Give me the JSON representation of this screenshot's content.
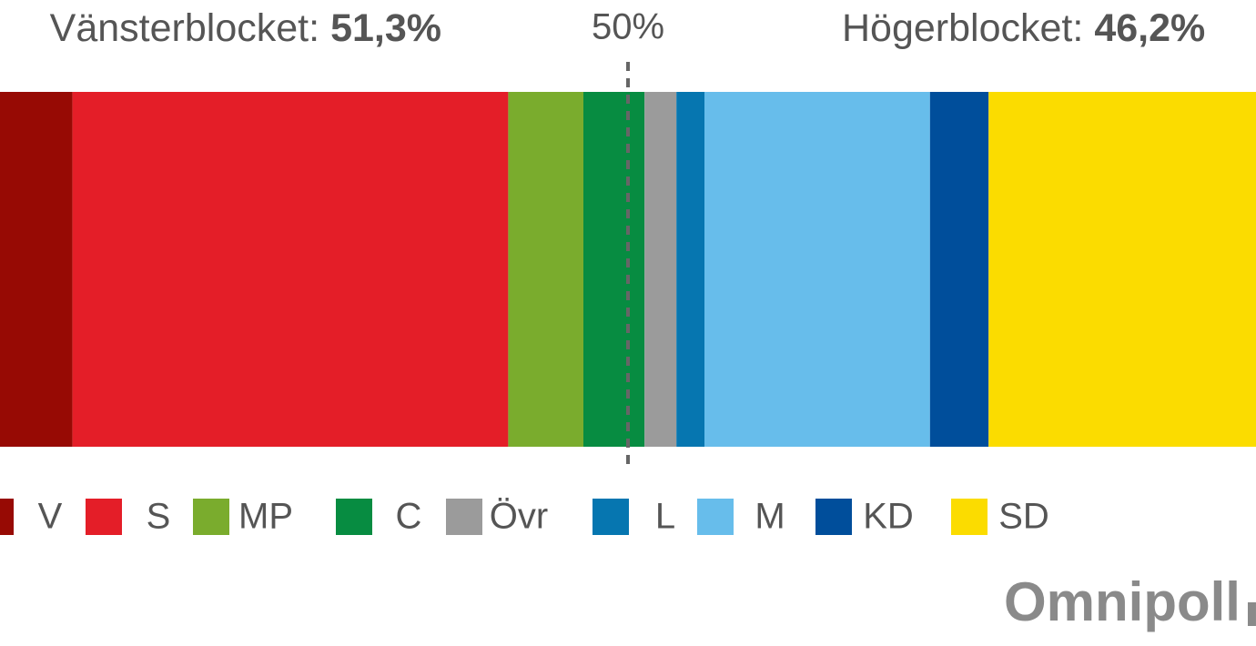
{
  "chart_data": {
    "type": "stacked-bar",
    "series": [
      {
        "name": "V",
        "color": "#970a04",
        "values": [
          6.4
        ]
      },
      {
        "name": "S",
        "color": "#e41e28",
        "values": [
          34.2
        ]
      },
      {
        "name": "MP",
        "color": "#7aac2d",
        "values": [
          5.9
        ]
      },
      {
        "name": "C",
        "color": "#078c41",
        "values": [
          4.8
        ]
      },
      {
        "name": "Övr",
        "color": "#9b9b9b",
        "values": [
          2.5
        ]
      },
      {
        "name": "L",
        "color": "#0676b0",
        "values": [
          2.2
        ]
      },
      {
        "name": "M",
        "color": "#67bdeb",
        "values": [
          17.7
        ]
      },
      {
        "name": "KD",
        "color": "#004e9b",
        "values": [
          4.6
        ]
      },
      {
        "name": "SD",
        "color": "#fbdc00",
        "values": [
          21.7
        ]
      }
    ],
    "xlim": [
      0,
      100
    ],
    "reference_line": {
      "value": 50,
      "label": "50%"
    },
    "left_block": {
      "label": "Vänsterblocket:",
      "total": "51,3%"
    },
    "right_block": {
      "label": "Högerblocket:",
      "total": "46,2%"
    },
    "logo": "Omnipoll"
  }
}
